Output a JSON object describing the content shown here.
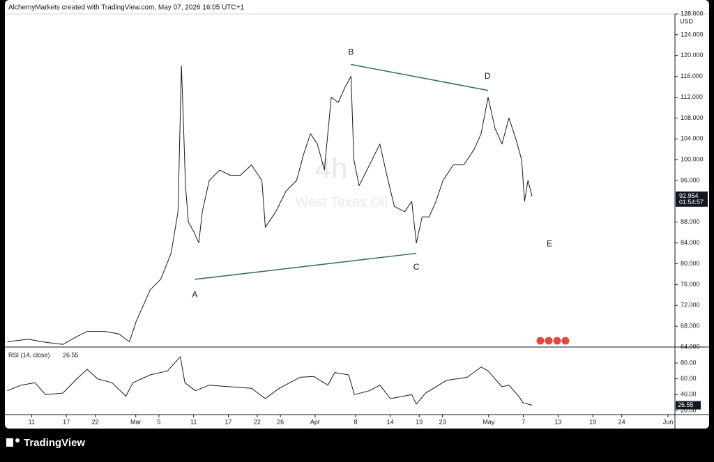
{
  "header": "AlchemyMarkets created with TradingView.com, May 07, 2026 16:05 UTC+1",
  "footer_logo": "TradingView",
  "chart_data": [
    {
      "type": "line",
      "interval": "4h",
      "symbol": "West Texas Oil",
      "currency": "USD",
      "last_price": 92.954,
      "countdown": "01:54:57",
      "x": [
        6.8,
        10.4,
        12.8,
        16.4,
        18.8,
        20.6,
        23.7,
        26.1,
        27.9,
        29.1,
        30.3,
        31.5,
        33.3,
        35.1,
        36.3,
        36.9,
        37.3,
        37.6,
        38.1,
        39.1,
        39.9,
        40.5,
        41.7,
        43.5,
        45.3,
        47.1,
        49.0,
        50.8,
        51.4,
        53.2,
        55.0,
        56.8,
        58.0,
        59.2,
        60.4,
        61.6,
        62.8,
        64.0,
        65.2,
        66.2,
        66.7,
        67.6,
        69.4,
        71.2,
        72.4,
        73.7,
        75.5,
        76.7,
        77.5,
        78.5,
        79.7,
        80.9,
        82.1,
        83.9,
        85.7,
        87.5,
        88.7,
        89.9,
        91.1,
        92.3,
        93.5,
        94.7,
        95.7,
        96.2,
        96.8,
        97.5
      ],
      "series": [
        {
          "color": "#131722",
          "values": [
            65,
            65.5,
            65,
            64.5,
            66,
            67,
            67,
            66.5,
            65,
            69,
            72,
            75,
            77,
            82,
            90,
            118,
            105,
            95,
            88,
            86,
            84,
            90,
            96,
            98,
            97,
            97,
            99,
            96,
            87,
            90,
            94,
            96,
            101,
            105,
            103,
            98,
            112,
            111,
            114,
            116,
            100,
            95,
            99,
            103,
            97,
            91,
            90,
            92,
            84,
            89,
            89,
            92,
            96,
            99,
            99,
            102,
            105,
            112,
            106,
            103,
            108,
            104,
            100,
            92,
            96,
            92.954
          ]
        }
      ],
      "xlim": [
        6.5,
        122.2
      ],
      "ylim": [
        64,
        128
      ],
      "yticks": [
        {
          "value": 128,
          "label": "128.000"
        },
        {
          "value": 124,
          "label": "124.000"
        },
        {
          "value": 120,
          "label": "120.000"
        },
        {
          "value": 116,
          "label": "116.000"
        },
        {
          "value": 112,
          "label": "112.000"
        },
        {
          "value": 108,
          "label": "108.000"
        },
        {
          "value": 104,
          "label": "104.000"
        },
        {
          "value": 100,
          "label": "100.000"
        },
        {
          "value": 96,
          "label": "96.000"
        },
        {
          "value": 88,
          "label": "88.000"
        },
        {
          "value": 84,
          "label": "84.000"
        },
        {
          "value": 80,
          "label": "80.000"
        },
        {
          "value": 76,
          "label": "76.000"
        },
        {
          "value": 72,
          "label": "72.000"
        },
        {
          "value": 68,
          "label": "68.000"
        },
        {
          "value": 64,
          "label": "64.000"
        }
      ],
      "grid": false,
      "pattern_color": "#2e6b5a",
      "pattern_lines": [
        {
          "x": [
            39.2,
            77.5
          ],
          "y": [
            77,
            82
          ]
        },
        {
          "x": [
            66.2,
            89.9
          ],
          "y": [
            118.3,
            113.3
          ]
        }
      ],
      "annotations": [
        {
          "text": "A",
          "x": 39.2,
          "y": 74.0
        },
        {
          "text": "B",
          "x": 66.2,
          "y": 120.6
        },
        {
          "text": "C",
          "x": 77.5,
          "y": 79.3
        },
        {
          "text": "D",
          "x": 89.8,
          "y": 116.0
        },
        {
          "text": "E",
          "x": 100.5,
          "y": 83.8
        }
      ]
    },
    {
      "type": "line",
      "title": "RSI (14, close)",
      "last_value": 26.55,
      "x": [
        6.8,
        9.2,
        11.6,
        13.4,
        16.4,
        18.8,
        20.6,
        22.4,
        24.9,
        27.3,
        28.5,
        31.5,
        34.5,
        36.7,
        37.5,
        39.3,
        41.7,
        45.3,
        49.0,
        51.4,
        53.8,
        57.4,
        59.8,
        62.2,
        63.4,
        65.8,
        66.8,
        69.4,
        71.2,
        73.0,
        76.7,
        77.5,
        79.1,
        82.7,
        86.3,
        88.7,
        89.9,
        92.3,
        93.5,
        95.3,
        95.9,
        97.5
      ],
      "series": [
        {
          "color": "#131722",
          "values": [
            45,
            52,
            55,
            40,
            42,
            60,
            72,
            60,
            55,
            38,
            55,
            65,
            70,
            88,
            55,
            45,
            52,
            50,
            48,
            35,
            48,
            62,
            63,
            52,
            68,
            65,
            40,
            45,
            52,
            35,
            40,
            28,
            42,
            58,
            62,
            75,
            70,
            50,
            52,
            37,
            30,
            26.55
          ]
        }
      ],
      "xlim": [
        6.5,
        122.2
      ],
      "ylim": [
        14.7,
        98.5
      ],
      "yticks": [
        {
          "value": 80,
          "label": "80.00"
        },
        {
          "value": 60,
          "label": "60.00"
        },
        {
          "value": 40,
          "label": "40.00"
        },
        {
          "value": 20,
          "label": "20.00"
        }
      ],
      "xticks": [
        {
          "value": 11,
          "label": "11"
        },
        {
          "value": 17,
          "label": "17"
        },
        {
          "value": 22,
          "label": "22"
        },
        {
          "value": 29,
          "label": "Mar"
        },
        {
          "value": 33,
          "label": "5"
        },
        {
          "value": 39,
          "label": "11"
        },
        {
          "value": 45,
          "label": "17"
        },
        {
          "value": 50,
          "label": "22"
        },
        {
          "value": 54,
          "label": "26"
        },
        {
          "value": 60,
          "label": "Apr"
        },
        {
          "value": 67,
          "label": "8"
        },
        {
          "value": 73,
          "label": "14"
        },
        {
          "value": 78,
          "label": "19"
        },
        {
          "value": 82,
          "label": "23"
        },
        {
          "value": 90,
          "label": "May"
        },
        {
          "value": 96,
          "label": "7"
        },
        {
          "value": 102,
          "label": "13"
        },
        {
          "value": 108,
          "label": "19"
        },
        {
          "value": 113,
          "label": "24"
        },
        {
          "value": 121,
          "label": "Jun"
        }
      ],
      "grid": false
    }
  ]
}
